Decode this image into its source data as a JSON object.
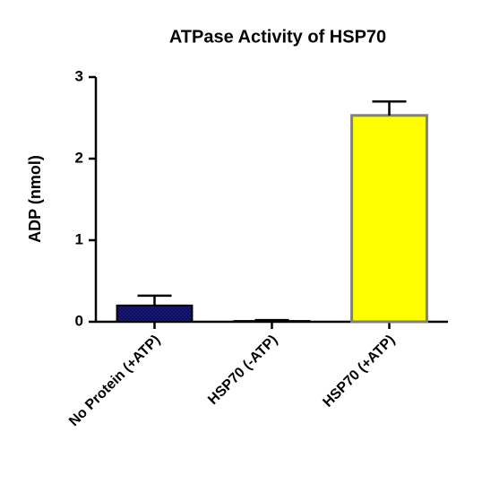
{
  "chart_data": {
    "type": "bar",
    "title": "ATPase Activity of HSP70",
    "y_label": "ADP (nmol)",
    "categories": [
      "No Protein (+ATP)",
      "HSP70 (-ATP)",
      "HSP70 (+ATP)"
    ],
    "values": [
      0.2,
      0.01,
      2.53
    ],
    "errors": [
      0.12,
      0.01,
      0.17
    ],
    "colors": [
      "#1c1c8a",
      "#ffffff",
      "#ffff00"
    ],
    "edge_colors": [
      "#000000",
      "#000000",
      "#808080"
    ],
    "ylim": [
      0,
      3
    ],
    "yticks": [
      0,
      1,
      2,
      3
    ],
    "grid": false
  }
}
